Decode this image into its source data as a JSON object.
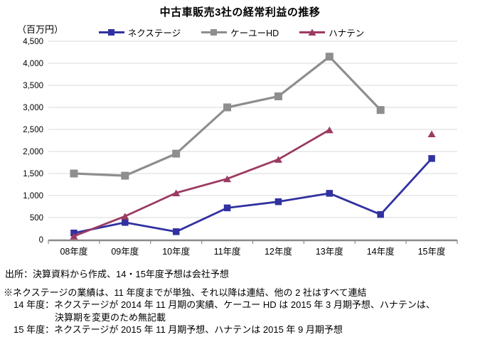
{
  "title": "中古車販売3社の経常利益の推移",
  "unit_label": "（百万円）",
  "source_note": "出所：決算資料から作成、14・15年度予想は会社予想",
  "footnotes": [
    "※ネクステージの業績は、11 年度までが単独、それ以降は連結、他の 2 社はすべて連結",
    "14 年度：ネクステージが 2014 年 11 月期の実績、ケーユー HD は 2015 年 3 月期予想、ハナテンは、",
    "決算期を変更のため無記載",
    "15 年度：ネクステージが 2015 年 11 月期予想、ハナテンは 2015 年 9 月期予想"
  ],
  "colors": {
    "nextage_blue": "#3131A0",
    "keiyu_gray": "#8E8E8E",
    "hanaten_maroon": "#9C3A62",
    "gridline": "#D8D8D8",
    "axis": "#8A8A8A"
  },
  "chart_data": {
    "type": "line",
    "title": "中古車販売3社の経常利益の推移",
    "ylabel_unit": "（百万円）",
    "categories": [
      "08年度",
      "09年度",
      "10年度",
      "11年度",
      "12年度",
      "13年度",
      "14年度",
      "15年度"
    ],
    "series": [
      {
        "name": "ネクステージ",
        "color": "#3131A0",
        "marker": "square",
        "values": [
          150,
          390,
          180,
          720,
          860,
          1050,
          570,
          1840
        ]
      },
      {
        "name": "ケーユーHD",
        "color": "#8E8E8E",
        "marker": "square",
        "values": [
          1500,
          1450,
          1950,
          3000,
          3250,
          4150,
          2940,
          null
        ]
      },
      {
        "name": "ハナテン",
        "color": "#9C3A62",
        "marker": "triangle",
        "values": [
          80,
          530,
          1060,
          1380,
          1820,
          2490,
          null,
          2400
        ]
      }
    ],
    "ylim": [
      0,
      4500
    ],
    "ytick_step": 500,
    "ytick_labels": [
      "0",
      "500",
      "1,000",
      "1,500",
      "2,000",
      "2,500",
      "3,000",
      "3,500",
      "4,000",
      "4,500"
    ],
    "grid": true,
    "legend_position": "top"
  }
}
